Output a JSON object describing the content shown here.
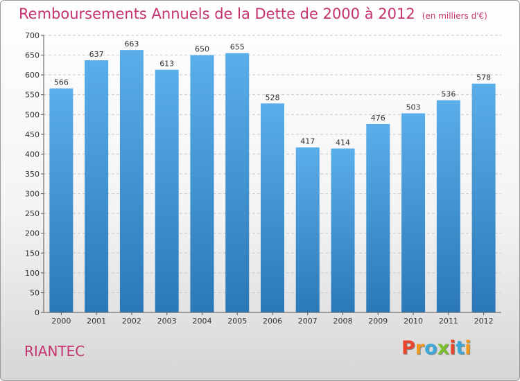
{
  "header": {
    "title": "Remboursements Annuels de la Dette de 2000 à 2012",
    "unit": "(en milliers d'€)"
  },
  "footer": {
    "commune": "RIANTEC",
    "logo_text": "Proxiti"
  },
  "colors": {
    "title": "#c4336e",
    "bar_top": "#5aaeea",
    "bar_bottom": "#2a78b8",
    "logo": [
      "#e8452c",
      "#f29a1d",
      "#3aa8d8",
      "#7bbf2a",
      "#e8452c",
      "#3aa8d8",
      "#f29a1d"
    ]
  },
  "chart_data": {
    "type": "bar",
    "title": "Remboursements Annuels de la Dette de 2000 à 2012",
    "xlabel": "",
    "ylabel": "",
    "ylim": [
      0,
      700
    ],
    "yticks": [
      0,
      50,
      100,
      150,
      200,
      250,
      300,
      350,
      400,
      450,
      500,
      550,
      600,
      650,
      700
    ],
    "grid": true,
    "legend": "none",
    "categories": [
      "2000",
      "2001",
      "2002",
      "2003",
      "2004",
      "2005",
      "2006",
      "2007",
      "2008",
      "2009",
      "2010",
      "2011",
      "2012"
    ],
    "values": [
      566,
      637,
      663,
      613,
      650,
      655,
      528,
      417,
      414,
      476,
      503,
      536,
      578
    ]
  }
}
